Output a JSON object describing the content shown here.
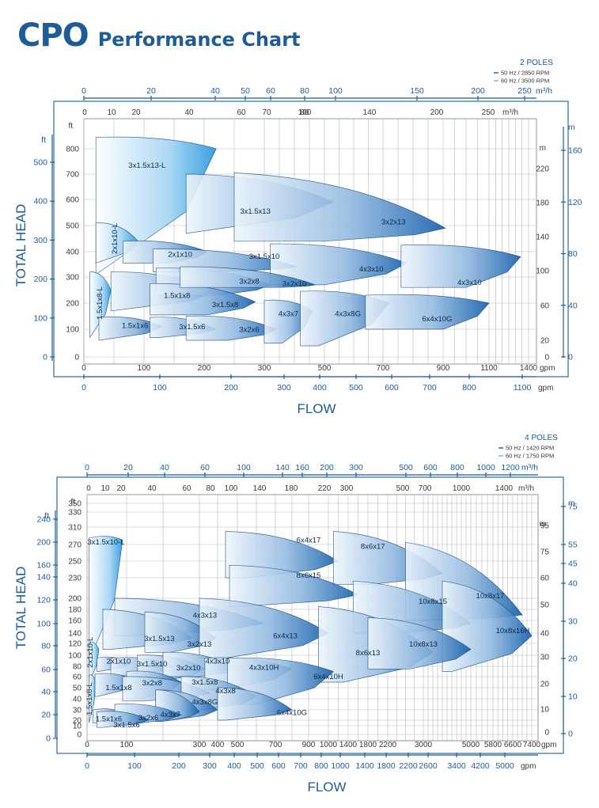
{
  "brand": {
    "code": "CPO",
    "title": "Performance Chart"
  },
  "chart_data": [
    {
      "type": "area",
      "poles": "2 POLES",
      "legend": [
        "50 Hz / 2850 RPM",
        "60 Hz / 3500 RPM"
      ],
      "colors": {
        "accent": "#1d5c97",
        "curve_dark": "#0d5aa8",
        "curve_light": "#e8f3fb"
      },
      "xlabel": "FLOW",
      "ylabel": "TOTAL HEAD",
      "axes": {
        "top_outer": {
          "unit": "m³/h",
          "ticks": [
            0,
            20,
            40,
            50,
            60,
            80,
            100,
            150,
            200,
            250
          ]
        },
        "top_inner": {
          "unit": "m³/h",
          "ticks": [
            0,
            10,
            20,
            40,
            60,
            70,
            80,
            100,
            140,
            200,
            250
          ]
        },
        "bottom_inner": {
          "unit": "gpm",
          "ticks": [
            0,
            100,
            200,
            300,
            500,
            700,
            900,
            1100,
            1400
          ]
        },
        "bottom_outer": {
          "unit": "gpm",
          "ticks": [
            0,
            100,
            200,
            300,
            400,
            500,
            600,
            700,
            800,
            1100
          ]
        },
        "left_inner": {
          "unit": "ft",
          "ticks": [
            0,
            100,
            200,
            300,
            400,
            500,
            600,
            700,
            800
          ]
        },
        "left_outer": {
          "unit": "ft",
          "ticks": [
            0,
            100,
            200,
            300,
            400,
            500
          ]
        },
        "right_inner": {
          "unit": "m",
          "ticks": [
            0,
            20,
            60,
            100,
            140,
            180,
            220
          ]
        },
        "right_outer": {
          "unit": "m",
          "ticks": [
            0,
            40,
            80,
            120,
            160
          ]
        }
      },
      "xlim": [
        0,
        1400
      ],
      "ylim": [
        0,
        800
      ],
      "curves": [
        {
          "label": "3x1.5x13-L",
          "x0": 20,
          "x1": 220,
          "h0": 845,
          "h1": 800,
          "qmin": 20,
          "hmin": 310,
          "label_x": 105,
          "label_y": 725
        },
        {
          "label": "3x1.5x13",
          "x0": 170,
          "x1": 530,
          "h0": 700,
          "h1": 590,
          "qmin": 170,
          "hmin": 470,
          "label_x": 285,
          "label_y": 545
        },
        {
          "label": "3x2x13",
          "x0": 250,
          "x1": 910,
          "h0": 705,
          "h1": 490,
          "qmin": 500,
          "hmin": 440,
          "label_x": 735,
          "label_y": 505
        },
        {
          "label": "2x1x10-L",
          "x0": 20,
          "x1": 90,
          "h0": 510,
          "h1": 440,
          "qmin": 20,
          "hmin": 355,
          "label_x": 55,
          "label_y": 450
        },
        {
          "label": "2x1x10",
          "x0": 65,
          "x1": 205,
          "h0": 440,
          "h1": 400,
          "qmin": 140,
          "hmin": 355,
          "label_x": 160,
          "label_y": 380
        },
        {
          "label": "3x1.5x10",
          "x0": 115,
          "x1": 410,
          "h0": 410,
          "h1": 340,
          "qmin": 205,
          "hmin": 320,
          "label_x": 300,
          "label_y": 372
        },
        {
          "label": "4x3x10",
          "x0": 320,
          "x1": 780,
          "h0": 430,
          "h1": 355,
          "qmin": 500,
          "hmin": 270,
          "label_x": 660,
          "label_y": 322
        },
        {
          "label": "4x3x10",
          "x0": 760,
          "x1": 1340,
          "h0": 425,
          "h1": 380,
          "qmin": 1000,
          "hmin": 260,
          "label_x": 1015,
          "label_y": 270
        },
        {
          "label": "1.5x1x8-L",
          "x0": 10,
          "x1": 45,
          "h0": 320,
          "h1": 250,
          "qmin": 10,
          "hmin": 70,
          "label_x": 30,
          "label_y": 200
        },
        {
          "label": "1.5x1x8",
          "x0": 45,
          "x1": 220,
          "h0": 320,
          "h1": 245,
          "qmin": 45,
          "hmin": 170,
          "label_x": 155,
          "label_y": 220
        },
        {
          "label": "3x2x8",
          "x0": 120,
          "x1": 320,
          "h0": 335,
          "h1": 270,
          "qmin": 220,
          "hmin": 230,
          "label_x": 275,
          "label_y": 275
        },
        {
          "label": "3x1.5x8",
          "x0": 110,
          "x1": 285,
          "h0": 275,
          "h1": 205,
          "qmin": 205,
          "hmin": 155,
          "label_x": 235,
          "label_y": 185
        },
        {
          "label": "3x2x10",
          "x0": 160,
          "x1": 470,
          "h0": 340,
          "h1": 270,
          "qmin": 360,
          "hmin": 260,
          "label_x": 400,
          "label_y": 265
        },
        {
          "label": "1.5x1x6",
          "x0": 25,
          "x1": 130,
          "h0": 145,
          "h1": 110,
          "qmin": 25,
          "hmin": 60,
          "label_x": 85,
          "label_y": 105
        },
        {
          "label": "3x1.5x6",
          "x0": 110,
          "x1": 220,
          "h0": 145,
          "h1": 100,
          "qmin": 125,
          "hmin": 70,
          "label_x": 180,
          "label_y": 100
        },
        {
          "label": "3x2x6",
          "x0": 170,
          "x1": 340,
          "h0": 150,
          "h1": 100,
          "qmin": 240,
          "hmin": 60,
          "label_x": 275,
          "label_y": 90
        },
        {
          "label": "4x3x7",
          "x0": 300,
          "x1": 460,
          "h0": 210,
          "h1": 170,
          "qmin": 360,
          "hmin": 50,
          "label_x": 380,
          "label_y": 150
        },
        {
          "label": "4x3x8G",
          "x0": 420,
          "x1": 720,
          "h0": 245,
          "h1": 200,
          "qmin": 480,
          "hmin": 40,
          "label_x": 580,
          "label_y": 150
        },
        {
          "label": "6x4x10G",
          "x0": 640,
          "x1": 1100,
          "h0": 230,
          "h1": 200,
          "qmin": 900,
          "hmin": 100,
          "label_x": 880,
          "label_y": 130
        }
      ]
    },
    {
      "type": "area",
      "poles": "4 POLES",
      "legend": [
        "50 Hz / 1420 RPM",
        "60 Hz / 1750 RPM"
      ],
      "xlabel": "FLOW",
      "ylabel": "TOTAL HEAD",
      "axes": {
        "top_outer": {
          "unit": "m³/h",
          "ticks": [
            0,
            20,
            40,
            60,
            100,
            140,
            160,
            200,
            300,
            500,
            600,
            800,
            1000,
            1200
          ]
        },
        "top_inner": {
          "unit": "m³/h",
          "ticks": [
            0,
            10,
            20,
            40,
            60,
            80,
            100,
            140,
            180,
            220,
            300,
            500,
            700,
            1000,
            1400
          ]
        },
        "bottom_inner": {
          "unit": "gpm",
          "ticks": [
            0,
            100,
            300,
            400,
            500,
            700,
            900,
            1000,
            1400,
            1800,
            2200,
            3000,
            5000,
            5800,
            6600,
            7400
          ]
        },
        "bottom_outer": {
          "unit": "gpm",
          "ticks": [
            0,
            100,
            200,
            300,
            400,
            500,
            600,
            700,
            800,
            1000,
            1400,
            1800,
            2200,
            2600,
            3400,
            4200,
            5000
          ]
        },
        "left_inner": {
          "unit": "ft",
          "ticks": [
            0,
            10,
            20,
            30,
            40,
            50,
            60,
            80,
            100,
            120,
            140,
            160,
            180,
            200,
            230,
            250,
            270,
            310,
            330,
            350
          ]
        },
        "left_outer": {
          "unit": "ft",
          "ticks": [
            0,
            20,
            40,
            60,
            80,
            100,
            120,
            140,
            160,
            200,
            240
          ]
        },
        "right_inner": {
          "unit": "m",
          "ticks": [
            0,
            10,
            20,
            30,
            40,
            50,
            60,
            75,
            95
          ]
        },
        "right_outer": {
          "unit": "m",
          "ticks": [
            0,
            10,
            20,
            30,
            40,
            45,
            55,
            75
          ]
        }
      },
      "xlim": [
        0,
        7400
      ],
      "ylim": [
        0,
        350
      ],
      "curves": [
        {
          "label": "3x1.5x10-L",
          "x0": 5,
          "x1": 90,
          "h0": 285,
          "h1": 280,
          "qmin": 5,
          "hmin": 90,
          "label_x": 48,
          "label_y": 270
        },
        {
          "label": "6x4x17",
          "x0": 440,
          "x1": 1200,
          "h0": 300,
          "h1": 250,
          "qmin": 560,
          "hmin": 230,
          "label_x": 900,
          "label_y": 275
        },
        {
          "label": "8x6x17",
          "x0": 1100,
          "x1": 3800,
          "h0": 300,
          "h1": 235,
          "qmin": 1800,
          "hmin": 220,
          "label_x": 1900,
          "label_y": 265
        },
        {
          "label": "8x6x15",
          "x0": 460,
          "x1": 1600,
          "h0": 245,
          "h1": 205,
          "qmin": 500,
          "hmin": 185,
          "label_x": 900,
          "label_y": 230
        },
        {
          "label": "10x8x17",
          "x0": 2600,
          "x1": 7000,
          "h0": 275,
          "h1": 170,
          "qmin": 3200,
          "hmin": 160,
          "label_x": 5700,
          "label_y": 200
        },
        {
          "label": "10x8x15",
          "x0": 1500,
          "x1": 5000,
          "h0": 225,
          "h1": 155,
          "qmin": 2400,
          "hmin": 140,
          "label_x": 3400,
          "label_y": 190
        },
        {
          "label": "10x8x16H",
          "x0": 3800,
          "x1": 7400,
          "h0": 225,
          "h1": 135,
          "qmin": 4200,
          "hmin": 70,
          "label_x": 6600,
          "label_y": 140
        },
        {
          "label": "4x3x13",
          "x0": 70,
          "x1": 640,
          "h0": 200,
          "h1": 155,
          "qmin": 110,
          "hmin": 135,
          "label_x": 330,
          "label_y": 165
        },
        {
          "label": "3x1.5x13",
          "x0": 40,
          "x1": 280,
          "h0": 180,
          "h1": 130,
          "qmin": 60,
          "hmin": 110,
          "label_x": 190,
          "label_y": 125
        },
        {
          "label": "3x2x13",
          "x0": 150,
          "x1": 390,
          "h0": 175,
          "h1": 130,
          "qmin": 220,
          "hmin": 105,
          "label_x": 300,
          "label_y": 115
        },
        {
          "label": "6x4x13",
          "x0": 300,
          "x1": 1000,
          "h0": 200,
          "h1": 140,
          "qmin": 440,
          "hmin": 95,
          "label_x": 760,
          "label_y": 130
        },
        {
          "label": "8x6x13",
          "x0": 950,
          "x1": 3400,
          "h0": 185,
          "h1": 105,
          "qmin": 1300,
          "hmin": 55,
          "label_x": 1800,
          "label_y": 100
        },
        {
          "label": "10x8x13",
          "x0": 1800,
          "x1": 5000,
          "h0": 165,
          "h1": 110,
          "qmin": 2700,
          "hmin": 75,
          "label_x": 3000,
          "label_y": 115
        },
        {
          "label": "2x1x10-L",
          "x0": 5,
          "x1": 30,
          "h0": 120,
          "h1": 110,
          "qmin": 5,
          "hmin": 55,
          "label_x": 14,
          "label_y": 105
        },
        {
          "label": "2x1x10",
          "x0": 25,
          "x1": 110,
          "h0": 95,
          "h1": 85,
          "qmin": 30,
          "hmin": 70,
          "label_x": 80,
          "label_y": 85
        },
        {
          "label": "3x1.5x10",
          "x0": 60,
          "x1": 230,
          "h0": 95,
          "h1": 80,
          "qmin": 90,
          "hmin": 62,
          "label_x": 170,
          "label_y": 80
        },
        {
          "label": "3x2x10",
          "x0": 130,
          "x1": 330,
          "h0": 100,
          "h1": 75,
          "qmin": 180,
          "hmin": 55,
          "label_x": 270,
          "label_y": 72
        },
        {
          "label": "4x3x10",
          "x0": 200,
          "x1": 500,
          "h0": 105,
          "h1": 75,
          "qmin": 300,
          "hmin": 60,
          "label_x": 400,
          "label_y": 85
        },
        {
          "label": "4x3x10H",
          "x0": 330,
          "x1": 800,
          "h0": 95,
          "h1": 75,
          "qmin": 420,
          "hmin": 48,
          "label_x": 640,
          "label_y": 73
        },
        {
          "label": "6x4x10H",
          "x0": 450,
          "x1": 1100,
          "h0": 95,
          "h1": 70,
          "qmin": 600,
          "hmin": 35,
          "label_x": 1000,
          "label_y": 58
        },
        {
          "label": "1.5x1x8-L",
          "x0": 5,
          "x1": 22,
          "h0": 62,
          "h1": 55,
          "qmin": 5,
          "hmin": 15,
          "label_x": 12,
          "label_y": 40
        },
        {
          "label": "1.5x1x8",
          "x0": 20,
          "x1": 130,
          "h0": 65,
          "h1": 55,
          "qmin": 25,
          "hmin": 42,
          "label_x": 80,
          "label_y": 48
        },
        {
          "label": "3x2x8",
          "x0": 100,
          "x1": 250,
          "h0": 70,
          "h1": 55,
          "qmin": 140,
          "hmin": 40,
          "label_x": 170,
          "label_y": 52
        },
        {
          "label": "3x1.5x8",
          "x0": 90,
          "x1": 360,
          "h0": 60,
          "h1": 45,
          "qmin": 150,
          "hmin": 38,
          "label_x": 330,
          "label_y": 53
        },
        {
          "label": "4x3x8",
          "x0": 250,
          "x1": 600,
          "h0": 60,
          "h1": 42,
          "qmin": 320,
          "hmin": 30,
          "label_x": 440,
          "label_y": 45
        },
        {
          "label": "4x3x8G",
          "x0": 180,
          "x1": 400,
          "h0": 48,
          "h1": 30,
          "qmin": 200,
          "hmin": 18,
          "label_x": 330,
          "label_y": 35
        },
        {
          "label": "6x4x10G",
          "x0": 400,
          "x1": 800,
          "h0": 50,
          "h1": 30,
          "qmin": 440,
          "hmin": 20,
          "label_x": 800,
          "label_y": 25
        },
        {
          "label": "4x3x7",
          "x0": 180,
          "x1": 300,
          "h0": 48,
          "h1": 28,
          "qmin": 200,
          "hmin": 18,
          "label_x": 220,
          "label_y": 23
        },
        {
          "label": "1.5x1x6",
          "x0": 15,
          "x1": 100,
          "h0": 30,
          "h1": 25,
          "qmin": 20,
          "hmin": 15,
          "label_x": 55,
          "label_y": 18
        },
        {
          "label": "3x2x6",
          "x0": 70,
          "x1": 250,
          "h0": 35,
          "h1": 25,
          "qmin": 100,
          "hmin": 12,
          "label_x": 160,
          "label_y": 20
        },
        {
          "label": "3x1.5x6",
          "x0": 25,
          "x1": 160,
          "h0": 28,
          "h1": 20,
          "qmin": 40,
          "hmin": 8,
          "label_x": 100,
          "label_y": 8
        }
      ]
    }
  ]
}
